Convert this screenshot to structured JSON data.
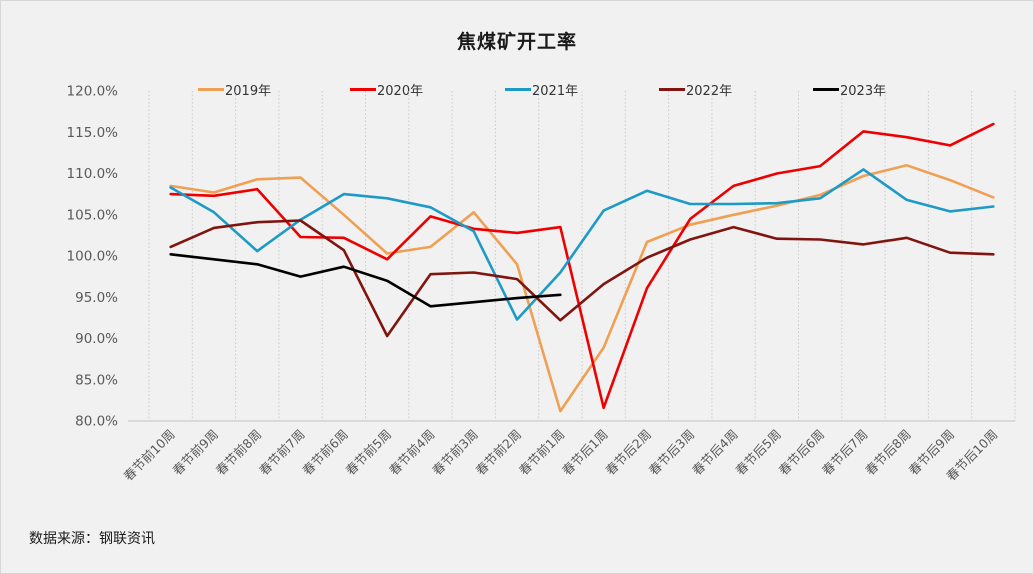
{
  "window": {
    "background": "#f1f1f1",
    "border_color": "#d6d6d6"
  },
  "chart_data": {
    "type": "line",
    "title": "焦煤矿开工率",
    "legend_position": "top",
    "gridlines": "vertical-dotted",
    "categories": [
      "春节前10周",
      "春节前9周",
      "春节前8周",
      "春节前7周",
      "春节前6周",
      "春节前5周",
      "春节前4周",
      "春节前3周",
      "春节前2周",
      "春节前1周",
      "春节后1周",
      "春节后2周",
      "春节后3周",
      "春节后4周",
      "春节后5周",
      "春节后6周",
      "春节后7周",
      "春节后8周",
      "春节后9周",
      "春节后10周"
    ],
    "y_axis": {
      "min": 80.0,
      "max": 120.0,
      "step": 5.0,
      "unit": "%",
      "labels": [
        "120.0%",
        "115.0%",
        "110.0%",
        "105.0%",
        "100.0%",
        "95.0%",
        "90.0%",
        "85.0%",
        "80.0%"
      ]
    },
    "series": [
      {
        "name": "2019年",
        "color": "#efa053",
        "values": [
          108.5,
          107.7,
          109.3,
          109.5,
          105.0,
          100.3,
          101.1,
          105.3,
          99.0,
          81.2,
          88.9,
          101.7,
          103.8,
          105.0,
          106.1,
          107.4,
          109.7,
          111.0,
          109.2,
          107.1
        ]
      },
      {
        "name": "2020年",
        "color": "#ee0000",
        "values": [
          107.5,
          107.3,
          108.1,
          102.3,
          102.2,
          99.6,
          104.8,
          103.3,
          102.8,
          103.5,
          81.6,
          96.1,
          104.5,
          108.5,
          110.0,
          110.9,
          115.1,
          114.4,
          113.4,
          116.0
        ]
      },
      {
        "name": "2021年",
        "color": "#1e9ac6",
        "values": [
          108.3,
          105.3,
          100.6,
          104.4,
          107.5,
          107.0,
          105.9,
          103.0,
          92.3,
          98.0,
          105.5,
          107.9,
          106.3,
          106.3,
          106.4,
          107.0,
          110.5,
          106.8,
          105.4,
          106.0
        ]
      },
      {
        "name": "2022年",
        "color": "#80150f",
        "values": [
          101.1,
          103.4,
          104.1,
          104.3,
          100.7,
          90.3,
          97.8,
          98.0,
          97.2,
          92.2,
          96.6,
          99.8,
          102.0,
          103.5,
          102.1,
          102.0,
          101.4,
          102.2,
          100.4,
          100.2
        ]
      },
      {
        "name": "2023年",
        "color": "#000000",
        "values": [
          100.2,
          99.6,
          99.0,
          97.5,
          98.7,
          97.0,
          93.9,
          94.4,
          94.9,
          95.3
        ]
      }
    ]
  },
  "source": {
    "label": "数据来源：钢联资讯"
  }
}
